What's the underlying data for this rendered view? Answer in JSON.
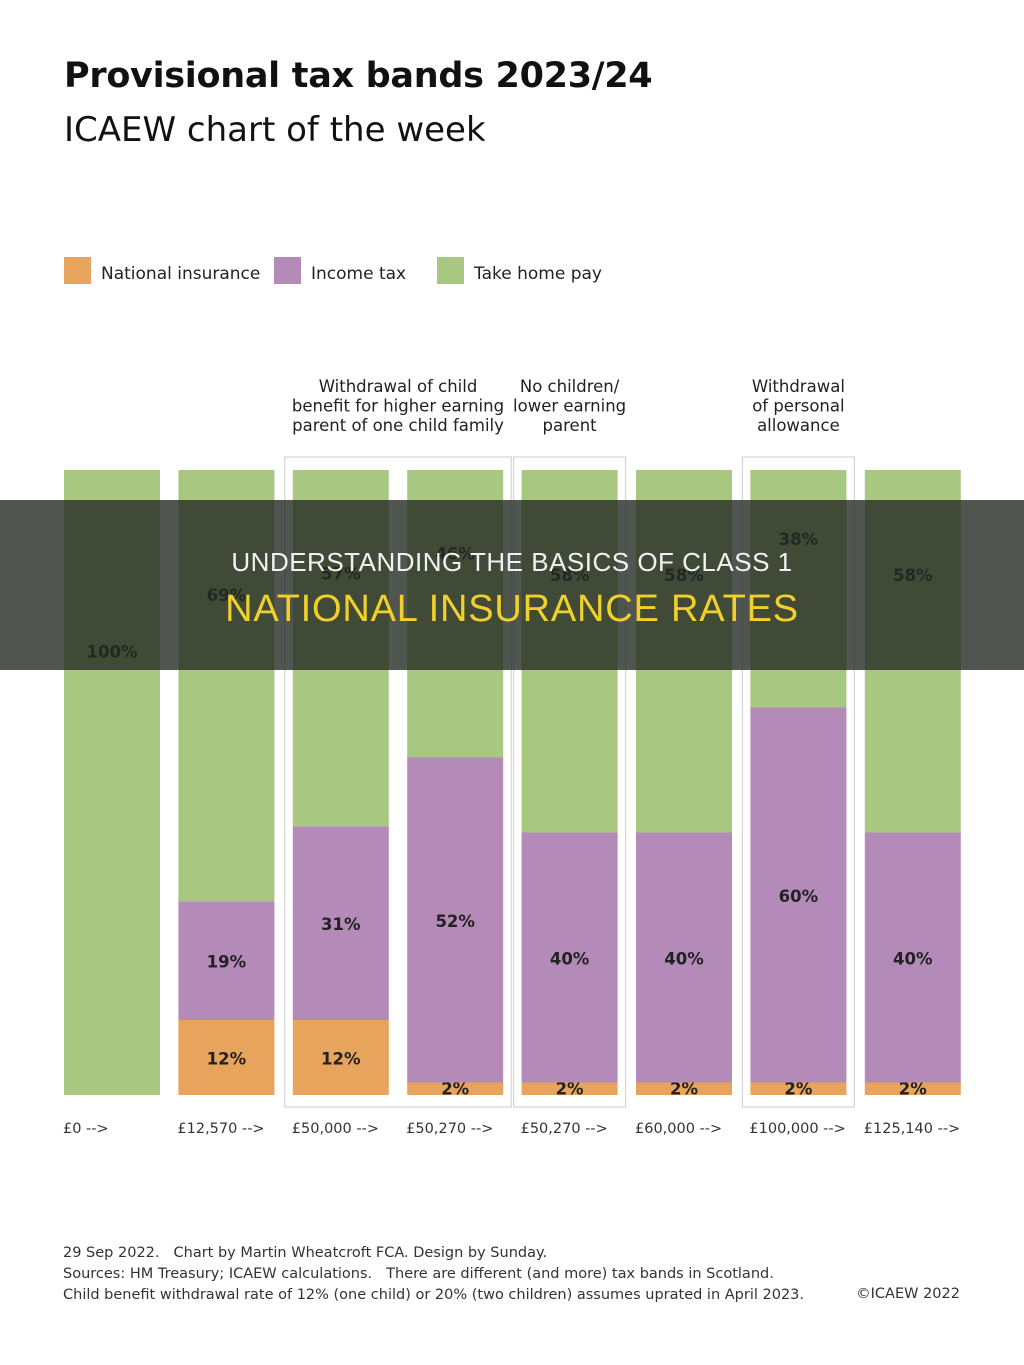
{
  "header": {
    "title": "Provisional tax bands 2023/24",
    "subtitle": "ICAEW chart of the week"
  },
  "colors": {
    "national_insurance": "#e8a45c",
    "income_tax": "#b48ab9",
    "take_home_pay": "#a8c882",
    "group_border": "#d4d4d4"
  },
  "chart_data": {
    "type": "bar",
    "stacked": true,
    "title": "Provisional tax bands 2023/24",
    "subtitle": "ICAEW chart of the week",
    "categories": [
      "£0 -->",
      "£12,570 -->",
      "£50,000 -->",
      "£50,270 -->",
      "£50,270 -->",
      "£60,000 -->",
      "£100,000 -->",
      "£125,140 -->"
    ],
    "series": [
      {
        "name": "National insurance",
        "values": [
          0,
          12,
          12,
          2,
          2,
          2,
          2,
          2
        ]
      },
      {
        "name": "Income tax",
        "values": [
          0,
          19,
          31,
          52,
          40,
          40,
          60,
          40
        ]
      },
      {
        "name": "Take home pay",
        "values": [
          100,
          69,
          57,
          46,
          58,
          58,
          38,
          58
        ]
      }
    ],
    "data_labels": [
      [
        "",
        "12%",
        "12%",
        "2%",
        "2%",
        "2%",
        "2%",
        "2%"
      ],
      [
        "",
        "19%",
        "31%",
        "52%",
        "40%",
        "40%",
        "60%",
        "40%"
      ],
      [
        "100%",
        "69%",
        "57%",
        "46%",
        "58%",
        "58%",
        "38%",
        "58%"
      ]
    ],
    "ylim": [
      0,
      100
    ],
    "legend_position": "top-left",
    "grid": false,
    "annotations": [
      {
        "text": [
          "Withdrawal of child",
          "benefit for higher earning",
          "parent of one child family"
        ],
        "from": 2,
        "to": 3
      },
      {
        "text": [
          "No children/",
          "lower earning",
          "parent"
        ],
        "from": 4,
        "to": 4
      },
      {
        "text": [
          "Withdrawal",
          "of personal",
          "allowance"
        ],
        "from": 6,
        "to": 6
      }
    ]
  },
  "footer": {
    "date": "29 Sep 2022.",
    "credit": "Chart by Martin Wheatcroft FCA. Design by Sunday.",
    "sources": "Sources: HM Treasury; ICAEW calculations.",
    "scotland_note": "There are different (and more) tax bands in Scotland.",
    "child_benefit_note": "Child benefit withdrawal rate of 12% (one child) or 20% (two children) assumes uprated in April 2023.",
    "copyright": "©ICAEW 2022"
  },
  "banner": {
    "line1": "UNDERSTANDING THE BASICS OF CLASS 1",
    "line2": "NATIONAL INSURANCE RATES"
  }
}
